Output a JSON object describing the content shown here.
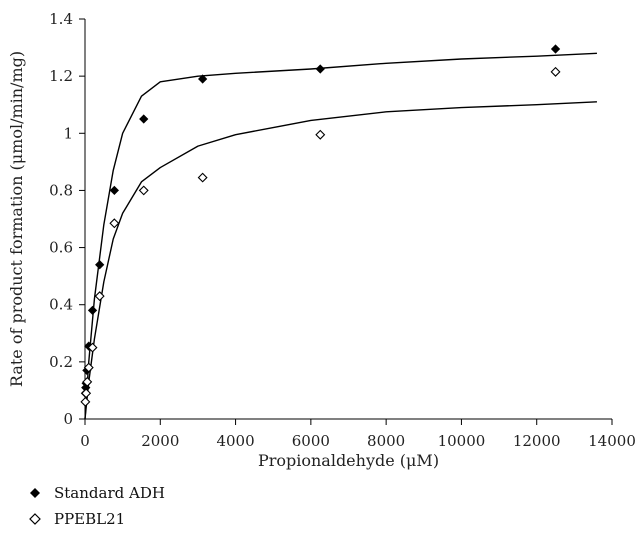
{
  "chart_data": {
    "type": "scatter",
    "xlabel": "Propionaldehyde (μM)",
    "ylabel": "Rate of product formation (μmol/min/mg)",
    "xlim": [
      0,
      14000
    ],
    "ylim": [
      0,
      1.4
    ],
    "xticks": [
      "0",
      "2000",
      "4000",
      "6000",
      "8000",
      "10000",
      "12000",
      "14000"
    ],
    "yticks": [
      "0",
      "0.2",
      "0.4",
      "0.6",
      "0.8",
      "1",
      "1.2",
      "1.4"
    ],
    "grid": false,
    "legend_position": "bottom-left",
    "series": [
      {
        "name": "Standard ADH",
        "marker": "filled-diamond",
        "color": "#000000",
        "points": [
          [
            10,
            0.09
          ],
          [
            20,
            0.11
          ],
          [
            30,
            0.125
          ],
          [
            50,
            0.17
          ],
          [
            100,
            0.255
          ],
          [
            200,
            0.38
          ],
          [
            390,
            0.54
          ],
          [
            780,
            0.8
          ],
          [
            1560,
            1.05
          ],
          [
            3125,
            1.19
          ],
          [
            6250,
            1.225
          ],
          [
            12500,
            1.295
          ]
        ],
        "fit_curve": [
          [
            0,
            0.0
          ],
          [
            100,
            0.2
          ],
          [
            250,
            0.42
          ],
          [
            500,
            0.68
          ],
          [
            750,
            0.87
          ],
          [
            1000,
            1.0
          ],
          [
            1500,
            1.13
          ],
          [
            2000,
            1.18
          ],
          [
            3000,
            1.2
          ],
          [
            4000,
            1.21
          ],
          [
            6000,
            1.225
          ],
          [
            8000,
            1.245
          ],
          [
            10000,
            1.26
          ],
          [
            12000,
            1.27
          ],
          [
            13600,
            1.28
          ]
        ]
      },
      {
        "name": "PPEBL21",
        "marker": "open-diamond",
        "color": "#000000",
        "points": [
          [
            10,
            0.06
          ],
          [
            30,
            0.09
          ],
          [
            60,
            0.13
          ],
          [
            100,
            0.18
          ],
          [
            200,
            0.25
          ],
          [
            390,
            0.43
          ],
          [
            780,
            0.685
          ],
          [
            1560,
            0.8
          ],
          [
            3125,
            0.845
          ],
          [
            6250,
            0.995
          ],
          [
            12500,
            1.215
          ]
        ],
        "fit_curve": [
          [
            0,
            0.0
          ],
          [
            100,
            0.13
          ],
          [
            250,
            0.28
          ],
          [
            500,
            0.48
          ],
          [
            750,
            0.63
          ],
          [
            1000,
            0.72
          ],
          [
            1500,
            0.83
          ],
          [
            2000,
            0.88
          ],
          [
            3000,
            0.955
          ],
          [
            4000,
            0.995
          ],
          [
            6000,
            1.045
          ],
          [
            8000,
            1.075
          ],
          [
            10000,
            1.09
          ],
          [
            12000,
            1.1
          ],
          [
            13600,
            1.11
          ]
        ]
      }
    ]
  }
}
